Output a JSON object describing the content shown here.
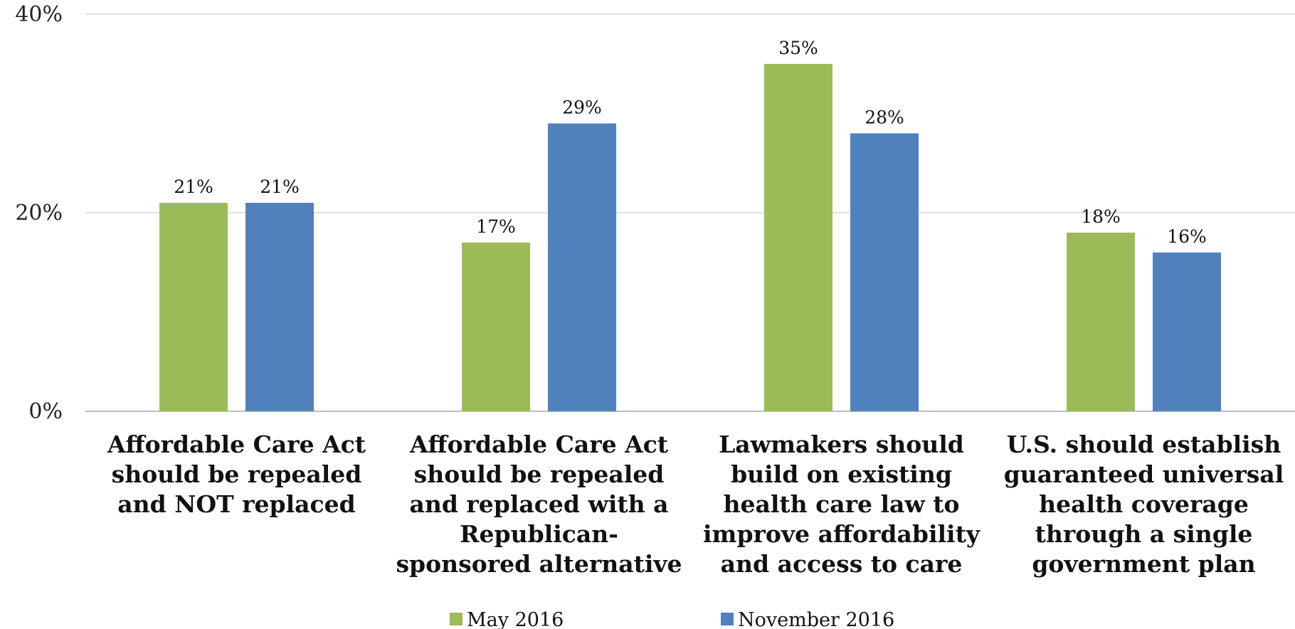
{
  "chart_data": {
    "type": "bar",
    "ylim": [
      0,
      40
    ],
    "yticks": [
      {
        "value": 0,
        "label": "0%"
      },
      {
        "value": 20,
        "label": "20%"
      },
      {
        "value": 40,
        "label": "40%"
      }
    ],
    "grid": true,
    "legend_position": "bottom",
    "categories": [
      [
        "Affordable Care Act",
        "should be repealed",
        "and NOT replaced"
      ],
      [
        "Affordable Care Act",
        "should be repealed",
        "and replaced with a",
        "Republican-",
        "sponsored alternative"
      ],
      [
        "Lawmakers should",
        "build on existing",
        "health care law to",
        "improve affordability",
        "and access to care"
      ],
      [
        "U.S. should establish",
        "guaranteed universal",
        "health coverage",
        "through a single",
        "government plan"
      ]
    ],
    "series": [
      {
        "name": "May 2016",
        "color": "#9bbb59",
        "values": [
          21,
          17,
          35,
          18
        ],
        "labels": [
          "21%",
          "17%",
          "35%",
          "18%"
        ]
      },
      {
        "name": "November 2016",
        "color": "#4f81bd",
        "values": [
          21,
          29,
          28,
          16
        ],
        "labels": [
          "21%",
          "29%",
          "28%",
          "16%"
        ]
      }
    ]
  }
}
